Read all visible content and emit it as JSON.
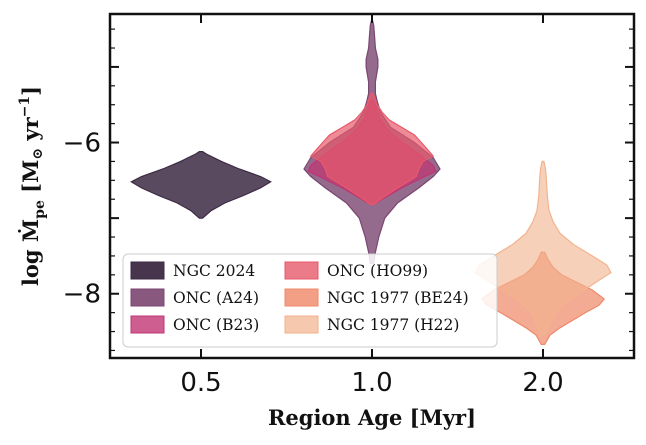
{
  "chart_data": {
    "type": "violin",
    "xlabel": "Region Age [Myr]",
    "ylabel_parts": {
      "prefix": "log Ṁ",
      "subscript": "pe",
      "units_open": " [M",
      "sun": "⊙",
      "units_mid": " yr",
      "sup": "−1",
      "units_close": "]"
    },
    "categories": [
      "0.5",
      "1.0",
      "2.0"
    ],
    "yticks": [
      -8,
      -6
    ],
    "ytick_labels": [
      "−8",
      "−6"
    ],
    "ylim": [
      -8.85,
      -4.3
    ],
    "series": [
      {
        "name": "NGC 2024",
        "category": "0.5",
        "color": "#3d2a44",
        "fill_opacity": 0.85,
        "profile": [
          [
            -7.0,
            0.02
          ],
          [
            -6.9,
            0.12
          ],
          [
            -6.8,
            0.28
          ],
          [
            -6.7,
            0.5
          ],
          [
            -6.6,
            0.7
          ],
          [
            -6.52,
            0.82
          ],
          [
            -6.45,
            0.7
          ],
          [
            -6.35,
            0.45
          ],
          [
            -6.25,
            0.24
          ],
          [
            -6.15,
            0.06
          ],
          [
            -6.12,
            0.02
          ]
        ]
      },
      {
        "name": "ONC (A24)",
        "category": "1.0",
        "color": "#7b4671",
        "fill_opacity": 0.8,
        "profile": [
          [
            -7.6,
            0.02
          ],
          [
            -7.45,
            0.04
          ],
          [
            -7.25,
            0.08
          ],
          [
            -7.0,
            0.15
          ],
          [
            -6.8,
            0.3
          ],
          [
            -6.6,
            0.55
          ],
          [
            -6.45,
            0.72
          ],
          [
            -6.35,
            0.8
          ],
          [
            -6.2,
            0.72
          ],
          [
            -6.0,
            0.5
          ],
          [
            -5.8,
            0.22
          ],
          [
            -5.6,
            0.1
          ],
          [
            -5.45,
            0.06
          ],
          [
            -5.35,
            0.04
          ],
          [
            -5.2,
            0.04
          ],
          [
            -5.0,
            0.07
          ],
          [
            -4.9,
            0.07
          ],
          [
            -4.75,
            0.04
          ],
          [
            -4.6,
            0.03
          ],
          [
            -4.45,
            0.02
          ],
          [
            -4.38,
            0.005
          ]
        ]
      },
      {
        "name": "ONC (B23)",
        "category": "1.0",
        "color": "#c23474",
        "fill_opacity": 0.7,
        "profile": [
          [
            -6.82,
            0.02
          ],
          [
            -6.75,
            0.12
          ],
          [
            -6.6,
            0.35
          ],
          [
            -6.45,
            0.62
          ],
          [
            -6.38,
            0.75
          ],
          [
            -6.3,
            0.72
          ],
          [
            -6.15,
            0.55
          ],
          [
            -6.0,
            0.36
          ],
          [
            -5.85,
            0.2
          ],
          [
            -5.7,
            0.1
          ],
          [
            -5.55,
            0.05
          ],
          [
            -5.45,
            0.02
          ]
        ]
      },
      {
        "name": "ONC (HO99)",
        "category": "1.0",
        "color": "#e75a6b",
        "fill_opacity": 0.7,
        "profile": [
          [
            -6.82,
            0.02
          ],
          [
            -6.75,
            0.1
          ],
          [
            -6.6,
            0.3
          ],
          [
            -6.5,
            0.45
          ],
          [
            -6.45,
            0.52
          ],
          [
            -6.35,
            0.55
          ],
          [
            -6.25,
            0.6
          ],
          [
            -6.18,
            0.72
          ],
          [
            -6.1,
            0.66
          ],
          [
            -6.0,
            0.58
          ],
          [
            -5.9,
            0.5
          ],
          [
            -5.8,
            0.35
          ],
          [
            -5.7,
            0.2
          ],
          [
            -5.6,
            0.12
          ],
          [
            -5.5,
            0.06
          ],
          [
            -5.4,
            0.03
          ],
          [
            -5.35,
            0.01
          ]
        ]
      },
      {
        "name": "NGC 1977 (BE24)",
        "category": "2.0",
        "color": "#ef8a6b",
        "fill_opacity": 0.72,
        "profile": [
          [
            -8.67,
            0.02
          ],
          [
            -8.55,
            0.08
          ],
          [
            -8.45,
            0.2
          ],
          [
            -8.35,
            0.35
          ],
          [
            -8.25,
            0.5
          ],
          [
            -8.15,
            0.66
          ],
          [
            -8.07,
            0.72
          ],
          [
            -7.95,
            0.58
          ],
          [
            -7.85,
            0.4
          ],
          [
            -7.75,
            0.22
          ],
          [
            -7.65,
            0.12
          ],
          [
            -7.55,
            0.06
          ],
          [
            -7.45,
            0.02
          ]
        ]
      },
      {
        "name": "NGC 1977 (H22)",
        "category": "2.0",
        "color": "#f2b38e",
        "fill_opacity": 0.62,
        "profile": [
          [
            -8.55,
            0.02
          ],
          [
            -8.45,
            0.06
          ],
          [
            -8.3,
            0.12
          ],
          [
            -8.15,
            0.22
          ],
          [
            -8.0,
            0.42
          ],
          [
            -7.85,
            0.62
          ],
          [
            -7.72,
            0.8
          ],
          [
            -7.62,
            0.75
          ],
          [
            -7.5,
            0.58
          ],
          [
            -7.35,
            0.36
          ],
          [
            -7.2,
            0.2
          ],
          [
            -7.05,
            0.12
          ],
          [
            -6.9,
            0.07
          ],
          [
            -6.7,
            0.05
          ],
          [
            -6.5,
            0.04
          ],
          [
            -6.35,
            0.03
          ],
          [
            -6.25,
            0.01
          ]
        ]
      }
    ],
    "legend": {
      "position": "lower-left",
      "columns": 2,
      "entries": [
        "NGC 2024",
        "ONC (HO99)",
        "ONC (A24)",
        "NGC 1977 (BE24)",
        "ONC (B23)",
        "NGC 1977 (H22)"
      ]
    }
  }
}
